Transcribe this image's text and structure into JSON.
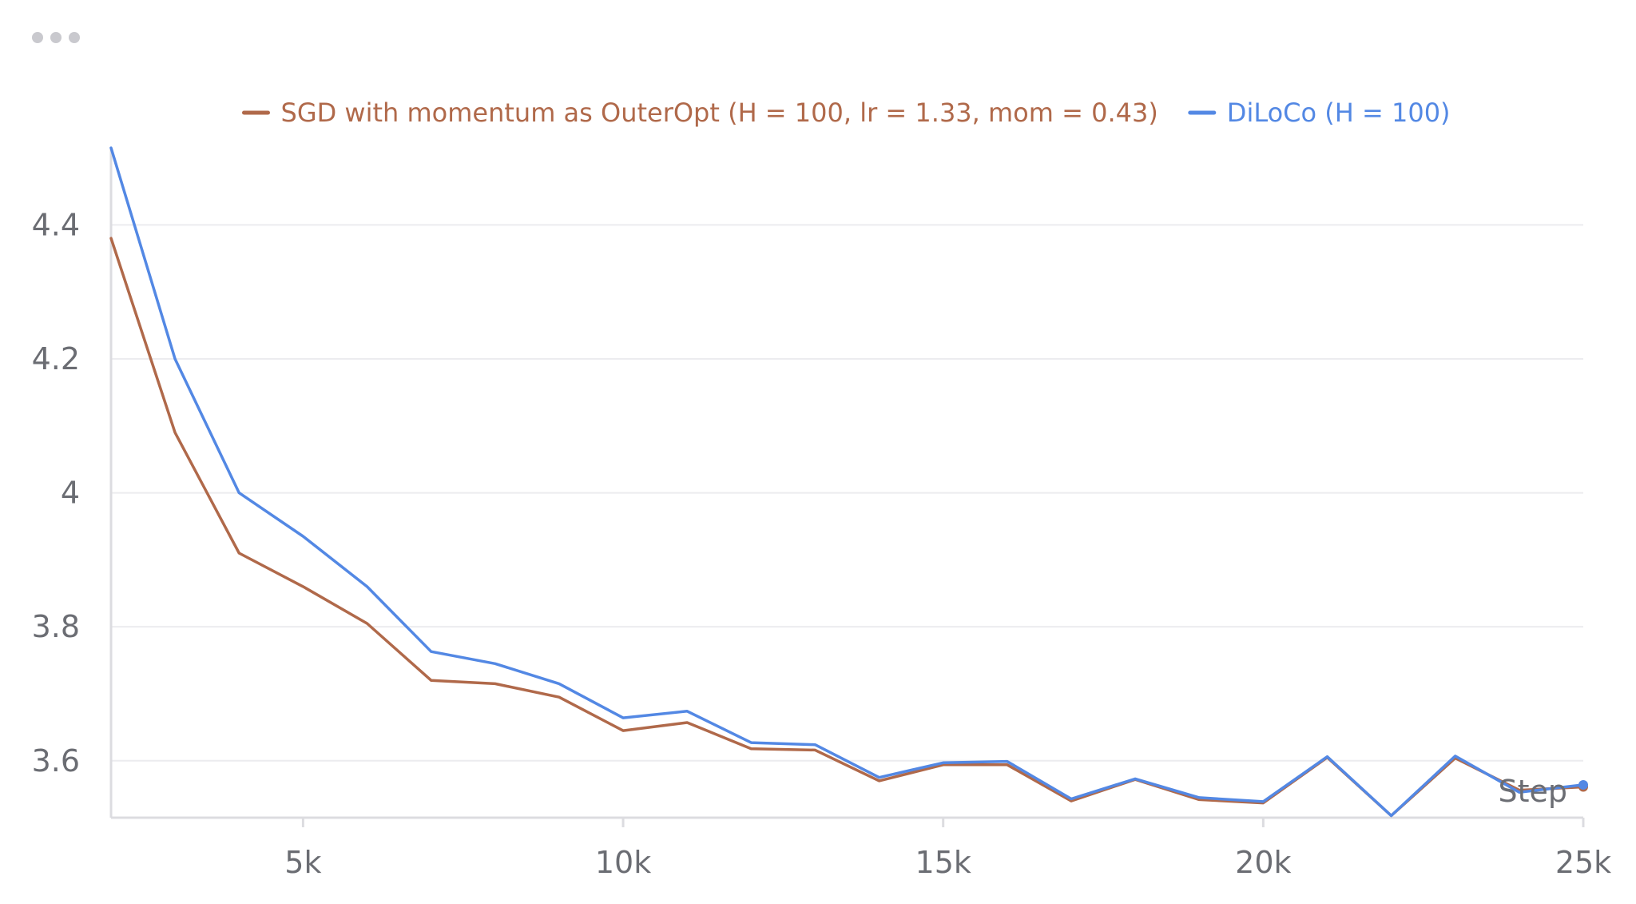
{
  "panel": {
    "menu_icon": "more-horizontal-icon"
  },
  "chart_data": {
    "type": "line",
    "title": "",
    "xlabel": "Step",
    "ylabel": "",
    "xlim": [
      2000,
      25000
    ],
    "ylim": [
      3.515,
      4.515
    ],
    "grid": true,
    "legend_position": "top",
    "x_ticks": [
      5000,
      10000,
      15000,
      20000,
      25000
    ],
    "x_tick_labels": [
      "5k",
      "10k",
      "15k",
      "20k",
      "25k"
    ],
    "y_ticks": [
      3.6,
      3.8,
      4.0,
      4.2,
      4.4
    ],
    "y_tick_labels": [
      "3.6",
      "3.8",
      "4",
      "4.2",
      "4.4"
    ],
    "x": [
      2000,
      3000,
      4000,
      5000,
      6000,
      7000,
      8000,
      9000,
      10000,
      11000,
      12000,
      13000,
      14000,
      15000,
      16000,
      17000,
      18000,
      19000,
      20000,
      21000,
      22000,
      23000,
      24000,
      25000
    ],
    "series": [
      {
        "name": "SGD with momentum as OuterOpt (H = 100, lr = 1.33, mom = 0.43)",
        "color": "#b0694a",
        "values": [
          4.38,
          4.09,
          3.91,
          3.86,
          3.805,
          3.72,
          3.715,
          3.695,
          3.645,
          3.657,
          3.618,
          3.616,
          3.57,
          3.594,
          3.594,
          3.54,
          3.572,
          3.542,
          3.537,
          3.605,
          3.518,
          3.604,
          3.556,
          3.561
        ]
      },
      {
        "name": "DiLoCo (H = 100)",
        "color": "#5388e4",
        "values": [
          4.515,
          4.2,
          4.0,
          3.935,
          3.86,
          3.763,
          3.745,
          3.715,
          3.664,
          3.674,
          3.627,
          3.624,
          3.575,
          3.597,
          3.599,
          3.543,
          3.573,
          3.545,
          3.539,
          3.606,
          3.518,
          3.607,
          3.553,
          3.564
        ]
      }
    ]
  }
}
